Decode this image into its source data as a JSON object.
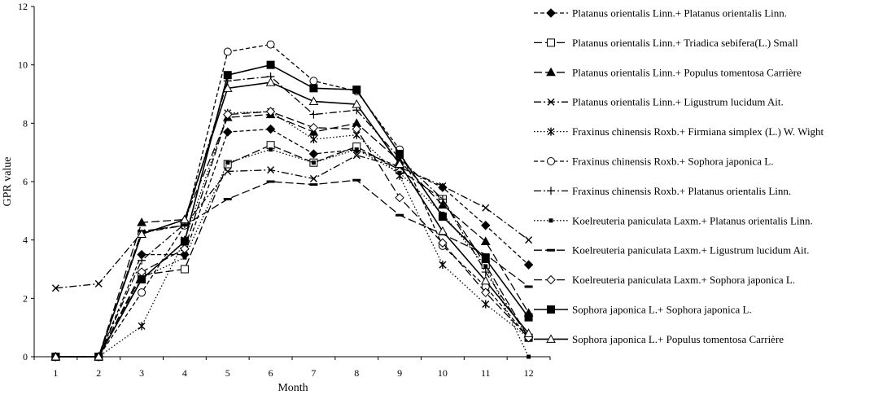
{
  "chart_data": {
    "type": "line",
    "title": "",
    "xlabel": "Month",
    "ylabel": "GPR value",
    "x": [
      1,
      2,
      3,
      4,
      5,
      6,
      7,
      8,
      9,
      10,
      11,
      12
    ],
    "x_tick_labels": [
      "1",
      "2",
      "3",
      "4",
      "5",
      "6",
      "7",
      "8",
      "9",
      "10",
      "11",
      "12"
    ],
    "ylim": [
      0,
      12
    ],
    "y_ticks": [
      0,
      2,
      4,
      6,
      8,
      10,
      12
    ],
    "grid": false,
    "legend_position": "right",
    "series": [
      {
        "name": "Platanus orientalis Linn.+ Platanus orientalis Linn.",
        "marker": "diamond-filled",
        "dash": "dashed",
        "values": [
          0,
          0,
          3.5,
          3.5,
          7.7,
          7.8,
          6.95,
          7.1,
          6.5,
          5.8,
          4.5,
          3.15
        ]
      },
      {
        "name": "Platanus orientalis Linn.+ Triadica sebifera(L.) Small",
        "marker": "square-open",
        "dash": "longdash",
        "values": [
          0,
          0,
          2.8,
          3.0,
          6.6,
          7.25,
          6.65,
          7.2,
          6.4,
          5.4,
          3.15,
          0.65
        ]
      },
      {
        "name": "Platanus orientalis Linn.+ Populus tomentosa Carrière",
        "marker": "triangle-filled",
        "dash": "longdash",
        "values": [
          0,
          0,
          4.6,
          4.7,
          8.2,
          8.3,
          7.7,
          8.0,
          6.7,
          5.2,
          3.95,
          1.5
        ]
      },
      {
        "name": "Platanus orientalis Linn.+ Ligustrum lucidum Ait.",
        "marker": "x",
        "dash": "dashdot",
        "values": [
          2.35,
          2.5,
          4.25,
          4.5,
          6.35,
          6.4,
          6.1,
          6.9,
          6.5,
          5.85,
          5.1,
          4.0
        ]
      },
      {
        "name": "Fraxinus chinensis Roxb.+ Firmiana simplex (L.) W. Wight",
        "marker": "star",
        "dash": "dotted",
        "values": [
          0,
          0,
          1.05,
          4.0,
          8.35,
          8.4,
          7.45,
          7.6,
          6.2,
          3.15,
          1.8,
          0.65
        ]
      },
      {
        "name": "Fraxinus chinensis Roxb.+ Sophora japonica L.",
        "marker": "circle-open",
        "dash": "dashed",
        "values": [
          0,
          0,
          2.2,
          4.5,
          10.45,
          10.7,
          9.45,
          9.1,
          7.1,
          3.8,
          2.4,
          0.65
        ]
      },
      {
        "name": "Fraxinus chinensis Roxb.+ Platanus orientalis Linn.",
        "marker": "plus",
        "dash": "dashdot",
        "values": [
          0,
          0,
          3.3,
          4.55,
          9.45,
          9.6,
          8.3,
          8.45,
          6.8,
          5.4,
          2.9,
          0.65
        ]
      },
      {
        "name": "Koelreuteria paniculata Laxm.+ Platanus orientalis Linn.",
        "marker": "small-square",
        "dash": "dotted",
        "values": [
          0,
          0,
          2.7,
          3.4,
          6.65,
          7.1,
          6.65,
          7.1,
          6.3,
          4.9,
          3.1,
          0.0
        ]
      },
      {
        "name": "Koelreuteria paniculata Laxm.+ Ligustrum lucidum Ait.",
        "marker": "dash",
        "dash": "longdash",
        "values": [
          0,
          0,
          4.3,
          4.5,
          5.4,
          6.0,
          5.9,
          6.05,
          4.85,
          4.2,
          3.5,
          2.4
        ]
      },
      {
        "name": "Koelreuteria paniculata Laxm.+ Sophora japonica L.",
        "marker": "diamond-open",
        "dash": "longdash",
        "values": [
          0,
          0,
          2.9,
          3.7,
          8.3,
          8.4,
          7.85,
          7.8,
          5.45,
          3.9,
          2.2,
          0.65
        ]
      },
      {
        "name": "Sophora japonica L.+ Sophora japonica L.",
        "marker": "square-filled",
        "dash": "solid",
        "values": [
          0,
          0,
          2.65,
          3.95,
          9.65,
          10.0,
          9.2,
          9.15,
          6.95,
          4.8,
          3.35,
          1.35
        ]
      },
      {
        "name": "Sophora japonica L.+ Populus tomentosa Carrière",
        "marker": "triangle-open",
        "dash": "solid",
        "values": [
          0,
          0,
          4.2,
          4.7,
          9.2,
          9.4,
          8.75,
          8.65,
          6.6,
          4.3,
          2.6,
          0.8
        ]
      }
    ]
  }
}
